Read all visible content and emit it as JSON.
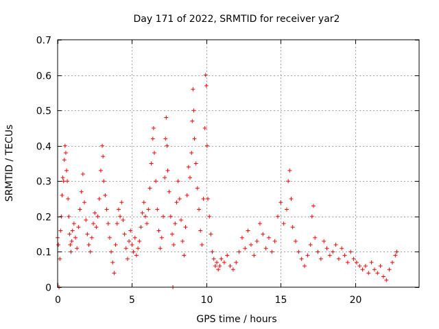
{
  "chart_data": {
    "type": "scatter",
    "title": "Day 171 of 2022, SRMTID for receiver yar2",
    "xlabel": "GPS time / hours",
    "ylabel": "SRMTID / TECUs",
    "xlim": [
      0,
      24.3
    ],
    "ylim": [
      0,
      0.7
    ],
    "xticks": [
      0,
      5,
      10,
      15,
      20
    ],
    "xtick_labels": [
      "0",
      "5",
      "10",
      "15",
      "20"
    ],
    "yticks": [
      0,
      0.1,
      0.2,
      0.3,
      0.4,
      0.5,
      0.6,
      0.7
    ],
    "ytick_labels": [
      "0",
      "0.1",
      "0.2",
      "0.3",
      "0.4",
      "0.5",
      "0.6",
      "0.7"
    ],
    "grid": true,
    "marker": "+",
    "color": "#ff0000",
    "series": [
      {
        "name": "yar2",
        "points": [
          [
            0.0,
            0.14
          ],
          [
            0.05,
            0.12
          ],
          [
            0.1,
            0.0
          ],
          [
            0.15,
            0.08
          ],
          [
            0.2,
            0.16
          ],
          [
            0.25,
            0.2
          ],
          [
            0.3,
            0.26
          ],
          [
            0.35,
            0.31
          ],
          [
            0.4,
            0.3
          ],
          [
            0.45,
            0.36
          ],
          [
            0.5,
            0.4
          ],
          [
            0.55,
            0.38
          ],
          [
            0.6,
            0.33
          ],
          [
            0.65,
            0.3
          ],
          [
            0.7,
            0.25
          ],
          [
            0.75,
            0.2
          ],
          [
            0.8,
            0.15
          ],
          [
            0.85,
            0.12
          ],
          [
            0.9,
            0.1
          ],
          [
            0.95,
            0.13
          ],
          [
            1.0,
            0.16
          ],
          [
            1.1,
            0.18
          ],
          [
            1.2,
            0.14
          ],
          [
            1.3,
            0.11
          ],
          [
            1.4,
            0.17
          ],
          [
            1.5,
            0.22
          ],
          [
            1.6,
            0.27
          ],
          [
            1.7,
            0.32
          ],
          [
            1.8,
            0.24
          ],
          [
            1.9,
            0.19
          ],
          [
            2.0,
            0.15
          ],
          [
            2.1,
            0.12
          ],
          [
            2.2,
            0.1
          ],
          [
            2.3,
            0.14
          ],
          [
            2.4,
            0.18
          ],
          [
            2.5,
            0.21
          ],
          [
            2.6,
            0.17
          ],
          [
            2.7,
            0.2
          ],
          [
            2.8,
            0.25
          ],
          [
            2.9,
            0.33
          ],
          [
            3.0,
            0.4
          ],
          [
            3.05,
            0.37
          ],
          [
            3.1,
            0.3
          ],
          [
            3.2,
            0.26
          ],
          [
            3.3,
            0.22
          ],
          [
            3.4,
            0.18
          ],
          [
            3.5,
            0.14
          ],
          [
            3.6,
            0.1
          ],
          [
            3.7,
            0.07
          ],
          [
            3.8,
            0.04
          ],
          [
            3.9,
            0.12
          ],
          [
            4.0,
            0.18
          ],
          [
            4.1,
            0.22
          ],
          [
            4.2,
            0.2
          ],
          [
            4.3,
            0.24
          ],
          [
            4.4,
            0.19
          ],
          [
            4.5,
            0.15
          ],
          [
            4.6,
            0.11
          ],
          [
            4.7,
            0.08
          ],
          [
            4.8,
            0.13
          ],
          [
            4.9,
            0.16
          ],
          [
            5.0,
            0.12
          ],
          [
            5.1,
            0.1
          ],
          [
            5.2,
            0.14
          ],
          [
            5.3,
            0.09
          ],
          [
            5.4,
            0.11
          ],
          [
            5.5,
            0.13
          ],
          [
            5.6,
            0.17
          ],
          [
            5.7,
            0.21
          ],
          [
            5.8,
            0.24
          ],
          [
            5.9,
            0.2
          ],
          [
            6.0,
            0.18
          ],
          [
            6.1,
            0.22
          ],
          [
            6.2,
            0.28
          ],
          [
            6.3,
            0.35
          ],
          [
            6.4,
            0.42
          ],
          [
            6.45,
            0.45
          ],
          [
            6.5,
            0.38
          ],
          [
            6.6,
            0.3
          ],
          [
            6.7,
            0.22
          ],
          [
            6.8,
            0.16
          ],
          [
            6.9,
            0.11
          ],
          [
            7.0,
            0.14
          ],
          [
            7.1,
            0.2
          ],
          [
            7.2,
            0.31
          ],
          [
            7.25,
            0.42
          ],
          [
            7.3,
            0.48
          ],
          [
            7.35,
            0.4
          ],
          [
            7.4,
            0.33
          ],
          [
            7.5,
            0.27
          ],
          [
            7.6,
            0.2
          ],
          [
            7.7,
            0.15
          ],
          [
            7.75,
            0.0
          ],
          [
            7.8,
            0.12
          ],
          [
            7.9,
            0.18
          ],
          [
            8.0,
            0.24
          ],
          [
            8.1,
            0.3
          ],
          [
            8.2,
            0.25
          ],
          [
            8.3,
            0.19
          ],
          [
            8.4,
            0.13
          ],
          [
            8.5,
            0.09
          ],
          [
            8.6,
            0.17
          ],
          [
            8.7,
            0.26
          ],
          [
            8.8,
            0.34
          ],
          [
            8.9,
            0.31
          ],
          [
            9.0,
            0.38
          ],
          [
            9.05,
            0.47
          ],
          [
            9.1,
            0.56
          ],
          [
            9.15,
            0.5
          ],
          [
            9.2,
            0.42
          ],
          [
            9.3,
            0.35
          ],
          [
            9.4,
            0.28
          ],
          [
            9.5,
            0.22
          ],
          [
            9.6,
            0.16
          ],
          [
            9.7,
            0.12
          ],
          [
            9.8,
            0.25
          ],
          [
            9.9,
            0.45
          ],
          [
            9.95,
            0.6
          ],
          [
            10.0,
            0.57
          ],
          [
            10.05,
            0.4
          ],
          [
            10.1,
            0.25
          ],
          [
            10.2,
            0.2
          ],
          [
            10.3,
            0.15
          ],
          [
            10.4,
            0.1
          ],
          [
            10.5,
            0.08
          ],
          [
            10.6,
            0.06
          ],
          [
            10.7,
            0.07
          ],
          [
            10.8,
            0.05
          ],
          [
            10.9,
            0.06
          ],
          [
            11.0,
            0.08
          ],
          [
            11.2,
            0.07
          ],
          [
            11.4,
            0.09
          ],
          [
            11.6,
            0.06
          ],
          [
            11.8,
            0.05
          ],
          [
            12.0,
            0.07
          ],
          [
            12.2,
            0.1
          ],
          [
            12.4,
            0.14
          ],
          [
            12.6,
            0.11
          ],
          [
            12.8,
            0.16
          ],
          [
            13.0,
            0.12
          ],
          [
            13.2,
            0.09
          ],
          [
            13.4,
            0.13
          ],
          [
            13.6,
            0.18
          ],
          [
            13.8,
            0.15
          ],
          [
            14.0,
            0.11
          ],
          [
            14.2,
            0.14
          ],
          [
            14.4,
            0.1
          ],
          [
            14.6,
            0.13
          ],
          [
            14.8,
            0.2
          ],
          [
            15.0,
            0.24
          ],
          [
            15.2,
            0.18
          ],
          [
            15.4,
            0.22
          ],
          [
            15.5,
            0.3
          ],
          [
            15.6,
            0.33
          ],
          [
            15.7,
            0.25
          ],
          [
            15.8,
            0.17
          ],
          [
            16.0,
            0.13
          ],
          [
            16.2,
            0.1
          ],
          [
            16.4,
            0.08
          ],
          [
            16.6,
            0.06
          ],
          [
            16.8,
            0.09
          ],
          [
            17.0,
            0.12
          ],
          [
            17.1,
            0.2
          ],
          [
            17.2,
            0.23
          ],
          [
            17.3,
            0.14
          ],
          [
            17.5,
            0.1
          ],
          [
            17.7,
            0.08
          ],
          [
            17.9,
            0.13
          ],
          [
            18.1,
            0.11
          ],
          [
            18.3,
            0.09
          ],
          [
            18.5,
            0.1
          ],
          [
            18.7,
            0.12
          ],
          [
            18.9,
            0.08
          ],
          [
            19.1,
            0.11
          ],
          [
            19.3,
            0.09
          ],
          [
            19.5,
            0.07
          ],
          [
            19.7,
            0.1
          ],
          [
            19.9,
            0.08
          ],
          [
            20.1,
            0.07
          ],
          [
            20.3,
            0.06
          ],
          [
            20.5,
            0.05
          ],
          [
            20.7,
            0.06
          ],
          [
            20.9,
            0.04
          ],
          [
            21.1,
            0.07
          ],
          [
            21.3,
            0.05
          ],
          [
            21.5,
            0.04
          ],
          [
            21.7,
            0.06
          ],
          [
            21.9,
            0.03
          ],
          [
            22.1,
            0.02
          ],
          [
            22.3,
            0.05
          ],
          [
            22.5,
            0.07
          ],
          [
            22.7,
            0.09
          ],
          [
            22.8,
            0.1
          ]
        ]
      }
    ]
  }
}
